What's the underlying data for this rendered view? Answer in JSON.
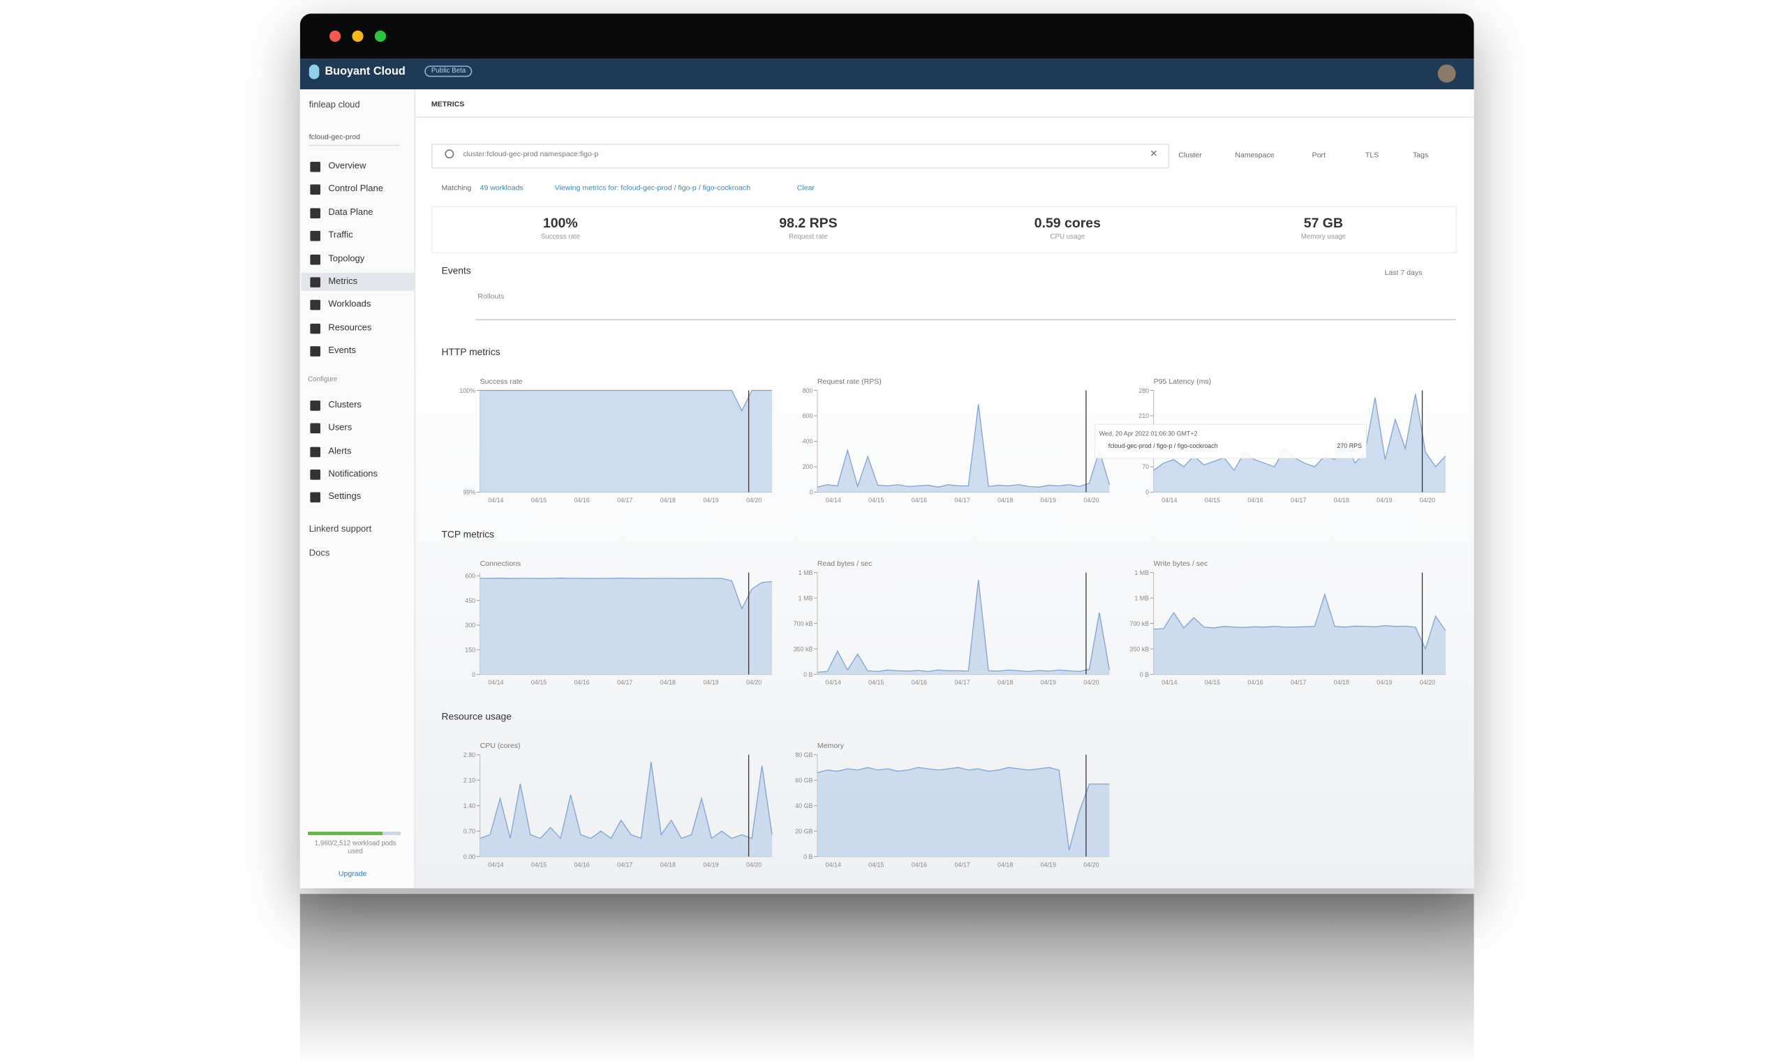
{
  "header": {
    "brand": "Buoyant Cloud",
    "badge": "Public Beta"
  },
  "sidebar": {
    "org": "finleap cloud",
    "cluster": "fcloud-gec-prod",
    "nav": [
      "Overview",
      "Control Plane",
      "Data Plane",
      "Traffic",
      "Topology",
      "Metrics",
      "Workloads",
      "Resources",
      "Events"
    ],
    "configure_heading": "Configure",
    "configure": [
      "Clusters",
      "Users",
      "Alerts",
      "Notifications",
      "Settings"
    ],
    "links": [
      "Linkerd support",
      "Docs"
    ],
    "usage": "1,960/2,512 workload pods used",
    "upgrade": "Upgrade"
  },
  "page_title": "METRICS",
  "filter": {
    "query": "cluster:fcloud-gec-prod namespace:figo-p",
    "dropdowns": [
      "Cluster",
      "Namespace",
      "Port",
      "TLS",
      "Tags"
    ]
  },
  "matching": {
    "label": "Matching",
    "count": "49 workloads",
    "viewing": "Viewing metrics for: fcloud-gec-prod / figo-p / figo-cockroach",
    "clear": "Clear"
  },
  "stats": [
    {
      "value": "100%",
      "label": "Success rate"
    },
    {
      "value": "98.2 RPS",
      "label": "Request rate"
    },
    {
      "value": "0.59 cores",
      "label": "CPU usage"
    },
    {
      "value": "57 GB",
      "label": "Memory usage"
    }
  ],
  "events": {
    "title": "Events",
    "range": "Last 7 days",
    "lane": "Rollouts"
  },
  "sections": [
    {
      "title": "HTTP metrics",
      "charts": [
        {
          "type": "area",
          "title": "Success rate",
          "ylim": [
            99,
            100
          ],
          "yticks": [
            {
              "value": 99,
              "label": "99%"
            },
            {
              "value": 100,
              "label": "100%"
            }
          ],
          "xticks": [
            "04/14",
            "04/15",
            "04/16",
            "04/17",
            "04/18",
            "04/19",
            "04/20"
          ],
          "values": [
            100,
            100,
            100,
            100,
            100,
            100,
            100,
            100,
            100,
            100,
            100,
            100,
            100,
            100,
            100,
            100,
            100,
            100,
            100,
            100,
            100,
            100,
            100,
            100,
            100,
            100,
            99.8,
            100,
            100,
            100
          ]
        },
        {
          "type": "area",
          "title": "Request rate (RPS)",
          "ylim": [
            0,
            800
          ],
          "yticks": [
            0,
            200,
            400,
            600,
            800
          ],
          "xticks": [
            "04/14",
            "04/15",
            "04/16",
            "04/17",
            "04/18",
            "04/19",
            "04/20"
          ],
          "values": [
            40,
            60,
            50,
            330,
            45,
            280,
            55,
            50,
            60,
            45,
            50,
            55,
            40,
            60,
            50,
            50,
            690,
            45,
            55,
            50,
            60,
            45,
            40,
            55,
            50,
            60,
            45,
            70,
            330,
            60
          ]
        },
        {
          "type": "area",
          "title": "P95 Latency (ms)",
          "ylim": [
            0,
            280
          ],
          "yticks": [
            0,
            70,
            140,
            210,
            280
          ],
          "xticks": [
            "04/14",
            "04/15",
            "04/16",
            "04/17",
            "04/18",
            "04/19",
            "04/20"
          ],
          "values": [
            60,
            80,
            90,
            70,
            100,
            75,
            85,
            95,
            60,
            110,
            90,
            80,
            70,
            120,
            95,
            80,
            70,
            100,
            90,
            150,
            80,
            110,
            260,
            90,
            200,
            120,
            270,
            110,
            70,
            100
          ],
          "tooltip": {
            "time": "Wed, 20 Apr 2022 01:06:30 GMT+2",
            "series": "fcloud-gec-prod / figo-p / figo-cockroach",
            "value": "270 RPS"
          }
        }
      ]
    },
    {
      "title": "TCP metrics",
      "charts": [
        {
          "type": "area",
          "title": "Connections",
          "ylim": [
            0,
            620
          ],
          "yticks": [
            0,
            150,
            300,
            450,
            600
          ],
          "xticks": [
            "04/14",
            "04/15",
            "04/16",
            "04/17",
            "04/18",
            "04/19",
            "04/20"
          ],
          "values": [
            585,
            585,
            586,
            584,
            585,
            585,
            584,
            585,
            586,
            585,
            585,
            584,
            585,
            585,
            586,
            585,
            584,
            585,
            585,
            585,
            584,
            585,
            585,
            584,
            585,
            570,
            400,
            520,
            560,
            565
          ]
        },
        {
          "type": "area",
          "title": "Read bytes / sec",
          "ylim": [
            0,
            1400000
          ],
          "yticks": [
            {
              "value": 0,
              "label": "0 B"
            },
            {
              "value": 350000,
              "label": "350 kB"
            },
            {
              "value": 700000,
              "label": "700 kB"
            },
            {
              "value": 1050000,
              "label": "1 MB"
            },
            {
              "value": 1400000,
              "label": "1 MB"
            }
          ],
          "xticks": [
            "04/14",
            "04/15",
            "04/16",
            "04/17",
            "04/18",
            "04/19",
            "04/20"
          ],
          "values": [
            30000,
            40000,
            320000,
            60000,
            280000,
            50000,
            40000,
            60000,
            50000,
            45000,
            55000,
            40000,
            60000,
            50000,
            50000,
            45000,
            1300000,
            50000,
            45000,
            60000,
            50000,
            40000,
            55000,
            45000,
            60000,
            50000,
            40000,
            70000,
            850000,
            60000
          ]
        },
        {
          "type": "area",
          "title": "Write bytes / sec",
          "ylim": [
            0,
            1400000
          ],
          "yticks": [
            {
              "value": 0,
              "label": "0 B"
            },
            {
              "value": 350000,
              "label": "350 kB"
            },
            {
              "value": 700000,
              "label": "700 kB"
            },
            {
              "value": 1050000,
              "label": "1 MB"
            },
            {
              "value": 1400000,
              "label": "1 MB"
            }
          ],
          "xticks": [
            "04/14",
            "04/15",
            "04/16",
            "04/17",
            "04/18",
            "04/19",
            "04/20"
          ],
          "values": [
            620000,
            630000,
            850000,
            640000,
            780000,
            650000,
            640000,
            660000,
            650000,
            645000,
            655000,
            650000,
            660000,
            650000,
            650000,
            655000,
            660000,
            1100000,
            660000,
            650000,
            665000,
            660000,
            655000,
            670000,
            660000,
            665000,
            650000,
            350000,
            800000,
            600000
          ]
        }
      ]
    },
    {
      "title": "Resource usage",
      "charts": [
        {
          "type": "area",
          "title": "CPU (cores)",
          "ylim": [
            0,
            2.8
          ],
          "yticks": [
            {
              "value": 0,
              "label": "0.00"
            },
            {
              "value": 0.7,
              "label": "0.70"
            },
            {
              "value": 1.4,
              "label": "1.40"
            },
            {
              "value": 2.1,
              "label": "2.10"
            },
            {
              "value": 2.8,
              "label": "2.80"
            }
          ],
          "xticks": [
            "04/14",
            "04/15",
            "04/16",
            "04/17",
            "04/18",
            "04/19",
            "04/20"
          ],
          "values": [
            0.5,
            0.6,
            1.6,
            0.5,
            2.0,
            0.6,
            0.5,
            0.8,
            0.5,
            1.7,
            0.6,
            0.5,
            0.7,
            0.5,
            1.0,
            0.6,
            0.5,
            2.6,
            0.6,
            1.0,
            0.5,
            0.6,
            1.6,
            0.5,
            0.7,
            0.5,
            0.6,
            0.5,
            2.5,
            0.6
          ]
        },
        {
          "type": "area",
          "title": "Memory",
          "ylim": [
            0,
            80
          ],
          "yticks": [
            {
              "value": 0,
              "label": "0 B"
            },
            {
              "value": 20,
              "label": "20 GB"
            },
            {
              "value": 40,
              "label": "40 GB"
            },
            {
              "value": 60,
              "label": "60 GB"
            },
            {
              "value": 80,
              "label": "80 GB"
            }
          ],
          "xticks": [
            "04/14",
            "04/15",
            "04/16",
            "04/17",
            "04/18",
            "04/19",
            "04/20"
          ],
          "values": [
            66,
            68,
            67,
            69,
            68,
            70,
            68,
            69,
            67,
            68,
            70,
            69,
            68,
            69,
            70,
            68,
            69,
            67,
            68,
            70,
            69,
            68,
            69,
            70,
            68,
            5,
            35,
            57,
            57,
            57
          ]
        }
      ]
    }
  ]
}
